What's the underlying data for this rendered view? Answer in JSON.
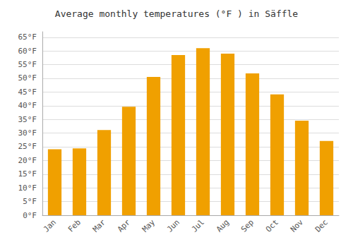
{
  "chart_data": {
    "type": "bar",
    "title": "Average monthly temperatures (°F ) in Säffle",
    "categories": [
      "Jan",
      "Feb",
      "Mar",
      "Apr",
      "May",
      "Jun",
      "Jul",
      "Aug",
      "Sep",
      "Oct",
      "Nov",
      "Dec"
    ],
    "values": [
      24.1,
      24.4,
      31.1,
      39.6,
      50.5,
      58.5,
      61.0,
      59.0,
      51.8,
      44.1,
      34.5,
      27.1
    ],
    "color": "#F0A000",
    "ylim": [
      0,
      67
    ],
    "yticks": [
      {
        "value": 0,
        "label": "0°F"
      },
      {
        "value": 5,
        "label": "5°F"
      },
      {
        "value": 10,
        "label": "10°F"
      },
      {
        "value": 15,
        "label": "15°F"
      },
      {
        "value": 20,
        "label": "20°F"
      },
      {
        "value": 25,
        "label": "25°F"
      },
      {
        "value": 30,
        "label": "30°F"
      },
      {
        "value": 35,
        "label": "35°F"
      },
      {
        "value": 40,
        "label": "40°F"
      },
      {
        "value": 45,
        "label": "45°F"
      },
      {
        "value": 50,
        "label": "50°F"
      },
      {
        "value": 55,
        "label": "55°F"
      },
      {
        "value": 60,
        "label": "60°F"
      },
      {
        "value": 65,
        "label": "65°F"
      }
    ],
    "grid": true
  }
}
